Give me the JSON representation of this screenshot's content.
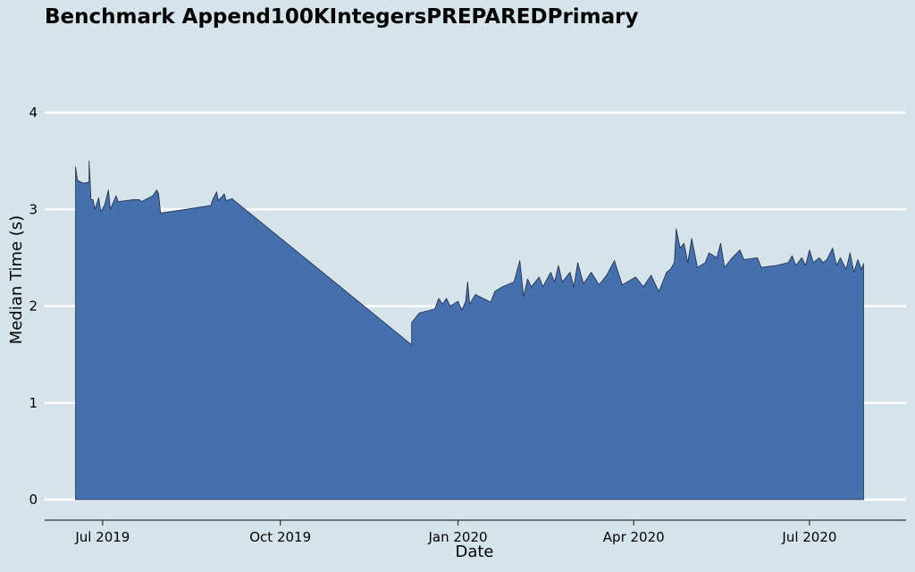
{
  "chart_data": {
    "type": "area",
    "title": "Benchmark Append100KIntegersPREPAREDPrimary",
    "xlabel": "Date",
    "ylabel": "Median Time (s)",
    "xlim": [
      "2019-06-01",
      "2020-08-20"
    ],
    "ylim": [
      0,
      4.2
    ],
    "grid": true,
    "x_ticks": [
      {
        "date": "2019-07-01",
        "label": "Jul 2019"
      },
      {
        "date": "2019-10-01",
        "label": "Oct 2019"
      },
      {
        "date": "2020-01-01",
        "label": "Jan 2020"
      },
      {
        "date": "2020-04-01",
        "label": "Apr 2020"
      },
      {
        "date": "2020-07-01",
        "label": "Jul 2020"
      }
    ],
    "y_ticks": [
      0,
      1,
      2,
      3,
      4
    ],
    "fill_color": "#4470ad",
    "edge_color": "#1f2a44",
    "series": [
      {
        "points": [
          [
            "2019-06-17",
            0
          ],
          [
            "2019-06-17",
            3.44
          ],
          [
            "2019-06-18",
            3.3
          ],
          [
            "2019-06-21",
            3.27
          ],
          [
            "2019-06-24",
            3.28
          ],
          [
            "2019-06-24",
            3.5
          ],
          [
            "2019-06-25",
            3.1
          ],
          [
            "2019-06-26",
            3.1
          ],
          [
            "2019-06-27",
            3.0
          ],
          [
            "2019-06-29",
            3.12
          ],
          [
            "2019-06-30",
            2.98
          ],
          [
            "2019-07-02",
            3.04
          ],
          [
            "2019-07-04",
            3.2
          ],
          [
            "2019-07-05",
            3.0
          ],
          [
            "2019-07-08",
            3.14
          ],
          [
            "2019-07-09",
            3.08
          ],
          [
            "2019-07-17",
            3.1
          ],
          [
            "2019-07-20",
            3.1
          ],
          [
            "2019-07-21",
            3.08
          ],
          [
            "2019-07-27",
            3.14
          ],
          [
            "2019-07-29",
            3.2
          ],
          [
            "2019-07-30",
            3.16
          ],
          [
            "2019-07-31",
            2.96
          ],
          [
            "2019-08-26",
            3.04
          ],
          [
            "2019-08-27",
            3.1
          ],
          [
            "2019-08-29",
            3.18
          ],
          [
            "2019-08-30",
            3.09
          ],
          [
            "2019-09-02",
            3.16
          ],
          [
            "2019-09-03",
            3.09
          ],
          [
            "2019-09-06",
            3.11
          ],
          [
            "2019-12-08",
            1.6
          ],
          [
            "2019-12-08",
            1.83
          ],
          [
            "2019-12-12",
            1.93
          ],
          [
            "2019-12-20",
            1.97
          ],
          [
            "2019-12-22",
            2.08
          ],
          [
            "2019-12-24",
            2.02
          ],
          [
            "2019-12-26",
            2.08
          ],
          [
            "2019-12-28",
            2.0
          ],
          [
            "2020-01-01",
            2.05
          ],
          [
            "2020-01-03",
            1.96
          ],
          [
            "2020-01-05",
            2.05
          ],
          [
            "2020-01-06",
            2.25
          ],
          [
            "2020-01-07",
            2.02
          ],
          [
            "2020-01-10",
            2.12
          ],
          [
            "2020-01-18",
            2.04
          ],
          [
            "2020-01-20",
            2.15
          ],
          [
            "2020-01-24",
            2.2
          ],
          [
            "2020-01-30",
            2.25
          ],
          [
            "2020-02-02",
            2.47
          ],
          [
            "2020-02-04",
            2.1
          ],
          [
            "2020-02-06",
            2.28
          ],
          [
            "2020-02-08",
            2.2
          ],
          [
            "2020-02-12",
            2.3
          ],
          [
            "2020-02-14",
            2.2
          ],
          [
            "2020-02-18",
            2.35
          ],
          [
            "2020-02-20",
            2.25
          ],
          [
            "2020-02-22",
            2.42
          ],
          [
            "2020-02-24",
            2.25
          ],
          [
            "2020-02-28",
            2.35
          ],
          [
            "2020-03-01",
            2.2
          ],
          [
            "2020-03-03",
            2.45
          ],
          [
            "2020-03-06",
            2.23
          ],
          [
            "2020-03-10",
            2.35
          ],
          [
            "2020-03-14",
            2.22
          ],
          [
            "2020-03-18",
            2.32
          ],
          [
            "2020-03-22",
            2.47
          ],
          [
            "2020-03-26",
            2.22
          ],
          [
            "2020-04-02",
            2.3
          ],
          [
            "2020-04-06",
            2.2
          ],
          [
            "2020-04-10",
            2.32
          ],
          [
            "2020-04-14",
            2.15
          ],
          [
            "2020-04-18",
            2.35
          ],
          [
            "2020-04-20",
            2.38
          ],
          [
            "2020-04-22",
            2.45
          ],
          [
            "2020-04-23",
            2.8
          ],
          [
            "2020-04-25",
            2.6
          ],
          [
            "2020-04-27",
            2.65
          ],
          [
            "2020-04-29",
            2.45
          ],
          [
            "2020-05-01",
            2.7
          ],
          [
            "2020-05-04",
            2.4
          ],
          [
            "2020-05-08",
            2.45
          ],
          [
            "2020-05-10",
            2.55
          ],
          [
            "2020-05-14",
            2.5
          ],
          [
            "2020-05-16",
            2.65
          ],
          [
            "2020-05-18",
            2.4
          ],
          [
            "2020-05-22",
            2.5
          ],
          [
            "2020-05-26",
            2.58
          ],
          [
            "2020-05-28",
            2.48
          ],
          [
            "2020-06-04",
            2.5
          ],
          [
            "2020-06-06",
            2.4
          ],
          [
            "2020-06-14",
            2.42
          ],
          [
            "2020-06-20",
            2.45
          ],
          [
            "2020-06-22",
            2.52
          ],
          [
            "2020-06-24",
            2.42
          ],
          [
            "2020-06-27",
            2.5
          ],
          [
            "2020-06-29",
            2.42
          ],
          [
            "2020-07-01",
            2.58
          ],
          [
            "2020-07-03",
            2.45
          ],
          [
            "2020-07-06",
            2.5
          ],
          [
            "2020-07-08",
            2.45
          ],
          [
            "2020-07-10",
            2.48
          ],
          [
            "2020-07-13",
            2.6
          ],
          [
            "2020-07-15",
            2.42
          ],
          [
            "2020-07-17",
            2.5
          ],
          [
            "2020-07-20",
            2.38
          ],
          [
            "2020-07-22",
            2.55
          ],
          [
            "2020-07-24",
            2.35
          ],
          [
            "2020-07-26",
            2.48
          ],
          [
            "2020-07-28",
            2.38
          ],
          [
            "2020-07-29",
            2.44
          ],
          [
            "2020-07-29",
            0
          ]
        ]
      }
    ]
  }
}
